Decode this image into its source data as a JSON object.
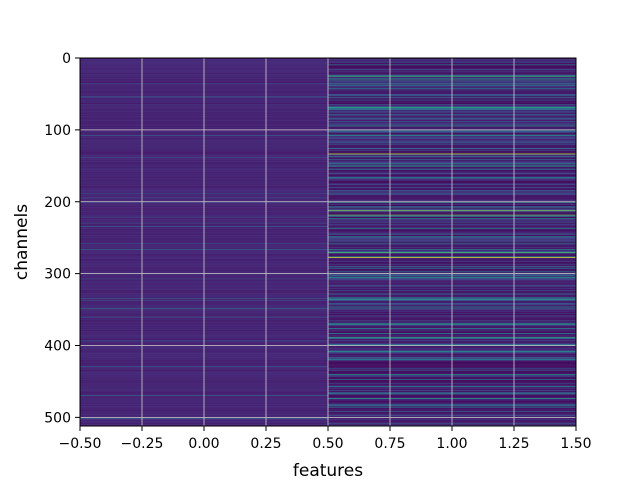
{
  "chart_data": {
    "type": "heatmap",
    "title": "",
    "xlabel": "features",
    "ylabel": "channels",
    "xlim": [
      -0.5,
      1.5
    ],
    "ylim": [
      512,
      0
    ],
    "x_categories": [
      0,
      1
    ],
    "y_count": 512,
    "colormap": "viridis",
    "grid": true,
    "x_ticks": [
      "−0.50",
      "−0.25",
      "0.00",
      "0.25",
      "0.50",
      "0.75",
      "1.00",
      "1.25",
      "1.50"
    ],
    "x_tick_values": [
      -0.5,
      -0.25,
      0,
      0.25,
      0.5,
      0.75,
      1.0,
      1.25,
      1.5
    ],
    "y_ticks": [
      "0",
      "100",
      "200",
      "300",
      "400",
      "500"
    ],
    "y_tick_values": [
      0,
      100,
      200,
      300,
      400,
      500
    ],
    "column_value_range": [
      {
        "feature": 0,
        "min": 0.0,
        "max": 0.3
      },
      {
        "feature": 1,
        "min": 0.0,
        "max": 1.0
      }
    ],
    "highlighted_rows_feature1": [
      {
        "channel": 25,
        "value": 0.65
      },
      {
        "channel": 30,
        "value": 0.55
      },
      {
        "channel": 68,
        "value": 0.6
      },
      {
        "channel": 107,
        "value": 0.55
      },
      {
        "channel": 133,
        "value": 0.9
      },
      {
        "channel": 150,
        "value": 0.55
      },
      {
        "channel": 200,
        "value": 0.6
      },
      {
        "channel": 212,
        "value": 0.8
      },
      {
        "channel": 218,
        "value": 0.75
      },
      {
        "channel": 270,
        "value": 0.7
      },
      {
        "channel": 277,
        "value": 0.95
      },
      {
        "channel": 305,
        "value": 0.5
      },
      {
        "channel": 335,
        "value": 0.55
      },
      {
        "channel": 388,
        "value": 0.6
      },
      {
        "channel": 408,
        "value": 0.5
      },
      {
        "channel": 440,
        "value": 0.5
      },
      {
        "channel": 473,
        "value": 0.5
      }
    ],
    "colors": {
      "background": "#ffffff",
      "grid": "#d0d0d0"
    }
  }
}
